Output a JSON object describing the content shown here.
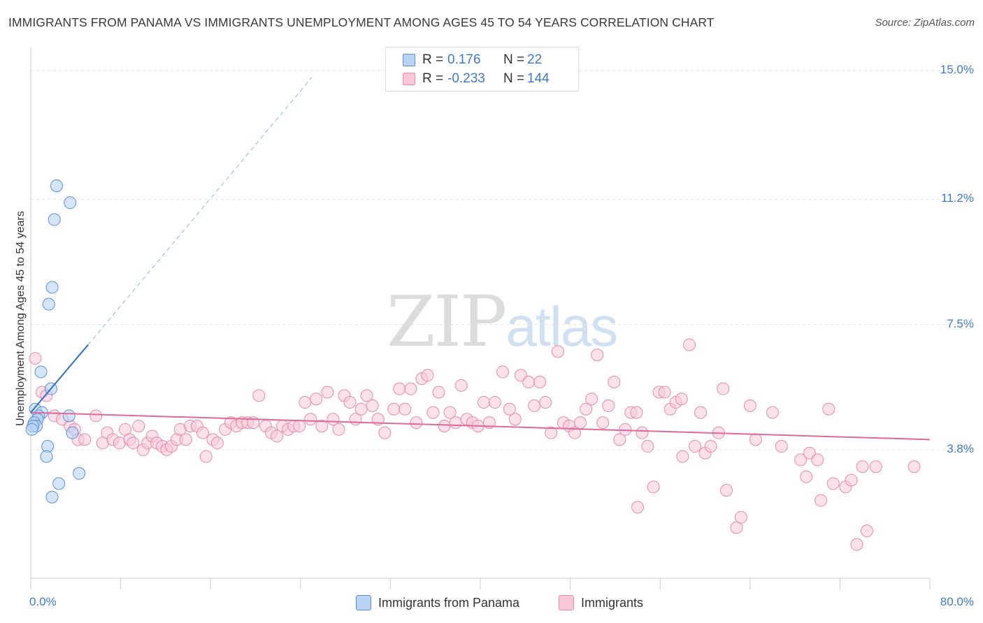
{
  "header": {
    "title": "IMMIGRANTS FROM PANAMA VS IMMIGRANTS UNEMPLOYMENT AMONG AGES 45 TO 54 YEARS CORRELATION CHART",
    "source": "Source: ZipAtlas.com"
  },
  "watermark": {
    "zip": "ZIP",
    "atlas": "atlas"
  },
  "legend": {
    "rows": [
      {
        "r_label": "R =",
        "r_value": "0.176",
        "n_label": "N =",
        "n_value": "22",
        "color": "#a9c8f0"
      },
      {
        "r_label": "R =",
        "r_value": "-0.233",
        "n_label": "N =",
        "n_value": "144",
        "color": "#f6b8cc"
      }
    ]
  },
  "bottom_legend": {
    "panama": "Immigrants from Panama",
    "immigrants": "Immigrants"
  },
  "colors": {
    "panama_fill": "#b8d3f4",
    "panama_stroke": "#5b8fd6",
    "panama_line": "#2f6fc8",
    "imm_fill": "#f8c8d8",
    "imm_stroke": "#e88aab",
    "imm_line": "#e0689a",
    "axis_text": "#3d7ac9"
  },
  "chart_data": {
    "type": "scatter",
    "title": "IMMIGRANTS FROM PANAMA VS IMMIGRANTS UNEMPLOYMENT AMONG AGES 45 TO 54 YEARS CORRELATION CHART",
    "xlabel": "",
    "ylabel": "Unemployment Among Ages 45 to 54 years",
    "xlim": [
      0,
      80
    ],
    "ylim": [
      0,
      15.5
    ],
    "x_tick_labels": [
      {
        "value": 0,
        "label": "0.0%"
      },
      {
        "value": 80,
        "label": "80.0%"
      }
    ],
    "y_tick_labels": [
      {
        "value": 3.8,
        "label": "3.8%"
      },
      {
        "value": 7.5,
        "label": "7.5%"
      },
      {
        "value": 11.2,
        "label": "11.2%"
      },
      {
        "value": 15.0,
        "label": "15.0%"
      }
    ],
    "series": [
      {
        "name": "Immigrants from Panama",
        "R": 0.176,
        "N": 22,
        "trend": {
          "x0": 0,
          "y0": 4.9,
          "x1": 5.1,
          "y1": 6.9,
          "dashed_to_x": 25,
          "dashed_to_y": 14.8
        },
        "points": [
          [
            2.3,
            11.6
          ],
          [
            3.5,
            11.1
          ],
          [
            2.1,
            10.6
          ],
          [
            1.9,
            8.6
          ],
          [
            1.6,
            8.1
          ],
          [
            0.9,
            6.1
          ],
          [
            1.8,
            5.6
          ],
          [
            0.4,
            5.0
          ],
          [
            1.0,
            4.9
          ],
          [
            0.7,
            4.8
          ],
          [
            3.4,
            4.8
          ],
          [
            0.6,
            4.7
          ],
          [
            0.3,
            4.6
          ],
          [
            0.5,
            4.5
          ],
          [
            0.2,
            4.5
          ],
          [
            0.1,
            4.4
          ],
          [
            3.7,
            4.3
          ],
          [
            1.5,
            3.9
          ],
          [
            1.4,
            3.6
          ],
          [
            4.3,
            3.1
          ],
          [
            2.5,
            2.8
          ],
          [
            1.9,
            2.4
          ]
        ]
      },
      {
        "name": "Immigrants",
        "R": -0.233,
        "N": 144,
        "trend": {
          "x0": 0,
          "y0": 4.9,
          "x1": 80,
          "y1": 4.1
        },
        "points": [
          [
            0.4,
            6.5
          ],
          [
            1.0,
            5.5
          ],
          [
            1.4,
            5.4
          ],
          [
            2.1,
            4.8
          ],
          [
            2.8,
            4.7
          ],
          [
            3.5,
            4.5
          ],
          [
            3.9,
            4.4
          ],
          [
            4.2,
            4.1
          ],
          [
            4.8,
            4.1
          ],
          [
            5.8,
            4.8
          ],
          [
            6.4,
            4.0
          ],
          [
            6.8,
            4.3
          ],
          [
            7.3,
            4.1
          ],
          [
            7.9,
            4.0
          ],
          [
            8.4,
            4.4
          ],
          [
            8.8,
            4.1
          ],
          [
            9.1,
            4.0
          ],
          [
            9.6,
            4.5
          ],
          [
            10.0,
            3.8
          ],
          [
            10.4,
            4.0
          ],
          [
            10.8,
            4.2
          ],
          [
            11.2,
            4.0
          ],
          [
            11.7,
            3.9
          ],
          [
            12.1,
            3.8
          ],
          [
            12.5,
            3.9
          ],
          [
            13.0,
            4.1
          ],
          [
            13.3,
            4.4
          ],
          [
            13.8,
            4.1
          ],
          [
            14.2,
            4.5
          ],
          [
            14.8,
            4.5
          ],
          [
            15.3,
            4.3
          ],
          [
            15.6,
            3.6
          ],
          [
            16.2,
            4.1
          ],
          [
            16.6,
            4.0
          ],
          [
            17.3,
            4.4
          ],
          [
            17.8,
            4.6
          ],
          [
            18.3,
            4.5
          ],
          [
            18.8,
            4.6
          ],
          [
            19.3,
            4.6
          ],
          [
            19.8,
            4.6
          ],
          [
            20.3,
            5.4
          ],
          [
            20.9,
            4.5
          ],
          [
            21.4,
            4.3
          ],
          [
            21.9,
            4.2
          ],
          [
            22.4,
            4.5
          ],
          [
            22.9,
            4.4
          ],
          [
            23.4,
            4.5
          ],
          [
            23.9,
            4.5
          ],
          [
            24.4,
            5.2
          ],
          [
            24.9,
            4.7
          ],
          [
            25.4,
            5.3
          ],
          [
            25.9,
            4.5
          ],
          [
            26.4,
            5.5
          ],
          [
            26.9,
            4.7
          ],
          [
            27.4,
            4.4
          ],
          [
            27.9,
            5.4
          ],
          [
            28.4,
            5.2
          ],
          [
            28.9,
            4.7
          ],
          [
            29.4,
            5.0
          ],
          [
            29.9,
            5.4
          ],
          [
            30.4,
            5.1
          ],
          [
            30.9,
            4.7
          ],
          [
            31.5,
            4.3
          ],
          [
            32.3,
            5.0
          ],
          [
            32.8,
            5.6
          ],
          [
            33.3,
            5.0
          ],
          [
            33.8,
            5.6
          ],
          [
            34.3,
            4.6
          ],
          [
            34.8,
            5.9
          ],
          [
            35.3,
            6.0
          ],
          [
            35.8,
            4.9
          ],
          [
            36.3,
            5.5
          ],
          [
            36.8,
            4.5
          ],
          [
            37.3,
            4.9
          ],
          [
            37.8,
            4.6
          ],
          [
            38.3,
            5.7
          ],
          [
            38.8,
            4.7
          ],
          [
            39.3,
            4.6
          ],
          [
            39.8,
            4.5
          ],
          [
            40.3,
            5.2
          ],
          [
            40.8,
            4.6
          ],
          [
            41.3,
            5.2
          ],
          [
            42.0,
            6.1
          ],
          [
            42.6,
            5.0
          ],
          [
            43.1,
            4.7
          ],
          [
            43.6,
            6.0
          ],
          [
            44.3,
            5.8
          ],
          [
            44.8,
            5.1
          ],
          [
            45.3,
            5.8
          ],
          [
            45.8,
            5.2
          ],
          [
            46.3,
            4.3
          ],
          [
            46.9,
            6.7
          ],
          [
            47.4,
            4.6
          ],
          [
            47.9,
            4.5
          ],
          [
            48.4,
            4.3
          ],
          [
            48.9,
            4.6
          ],
          [
            49.4,
            5.0
          ],
          [
            49.9,
            5.3
          ],
          [
            50.4,
            6.6
          ],
          [
            50.9,
            4.6
          ],
          [
            51.4,
            5.1
          ],
          [
            51.9,
            5.8
          ],
          [
            52.4,
            4.1
          ],
          [
            52.9,
            4.4
          ],
          [
            53.4,
            4.9
          ],
          [
            53.9,
            4.9
          ],
          [
            54.4,
            4.3
          ],
          [
            54.9,
            3.9
          ],
          [
            55.4,
            2.7
          ],
          [
            55.9,
            5.5
          ],
          [
            56.4,
            5.5
          ],
          [
            56.9,
            5.0
          ],
          [
            57.4,
            5.2
          ],
          [
            57.9,
            5.3
          ],
          [
            58.6,
            6.9
          ],
          [
            59.1,
            3.9
          ],
          [
            59.6,
            4.9
          ],
          [
            60.0,
            3.7
          ],
          [
            60.5,
            3.9
          ],
          [
            61.2,
            4.3
          ],
          [
            61.6,
            5.6
          ],
          [
            61.9,
            2.6
          ],
          [
            62.8,
            1.5
          ],
          [
            63.2,
            1.8
          ],
          [
            64.0,
            5.1
          ],
          [
            64.5,
            4.1
          ],
          [
            66.0,
            4.9
          ],
          [
            66.8,
            3.9
          ],
          [
            68.5,
            3.5
          ],
          [
            69.0,
            3.0
          ],
          [
            69.3,
            3.7
          ],
          [
            70.3,
            2.3
          ],
          [
            71.0,
            5.0
          ],
          [
            71.4,
            2.8
          ],
          [
            72.5,
            2.7
          ],
          [
            73.0,
            2.9
          ],
          [
            73.5,
            1.0
          ],
          [
            74.0,
            3.3
          ],
          [
            74.4,
            1.4
          ],
          [
            75.2,
            3.3
          ],
          [
            78.6,
            3.3
          ],
          [
            70.0,
            3.5
          ],
          [
            58.0,
            3.6
          ],
          [
            54.0,
            2.1
          ]
        ]
      }
    ]
  }
}
